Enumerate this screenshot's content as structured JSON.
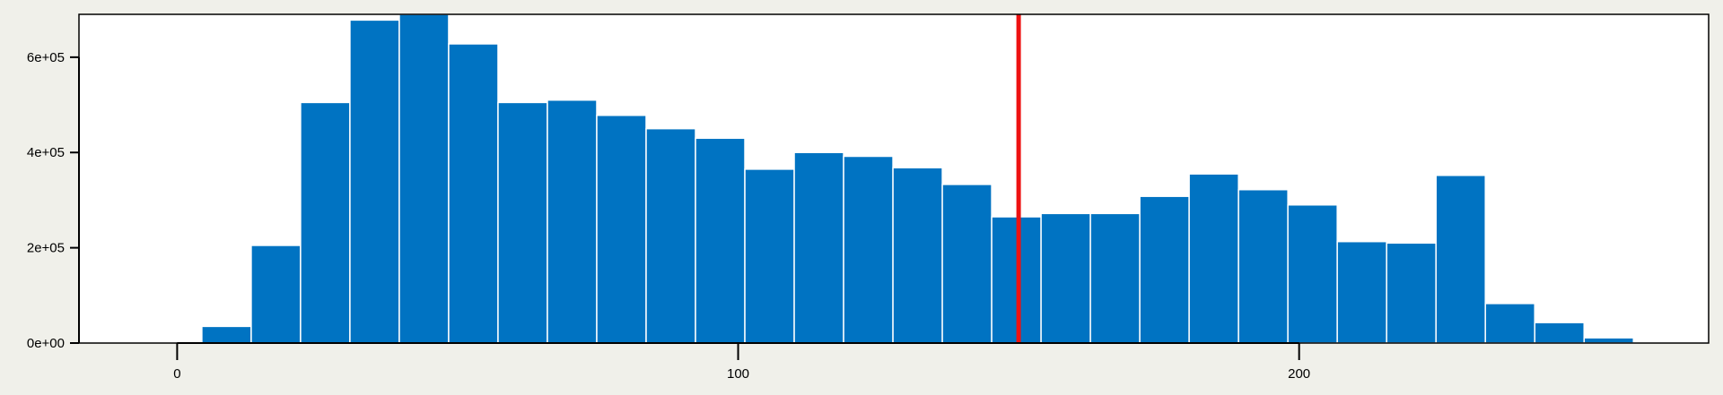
{
  "chart_data": {
    "type": "bar",
    "title": "",
    "xlabel": "",
    "ylabel": "",
    "bin_width": 8.8,
    "bin_start": 4.4,
    "values": [
      35000,
      205000,
      505000,
      678000,
      690000,
      628000,
      505000,
      510000,
      478000,
      450000,
      430000,
      365000,
      400000,
      392000,
      368000,
      333000,
      265000,
      272000,
      272000,
      308000,
      355000,
      322000,
      290000,
      213000,
      210000,
      352000,
      83000,
      43000,
      11000
    ],
    "xlim": [
      -17.5,
      273
    ],
    "ylim": [
      0,
      690000
    ],
    "x_ticks": [
      0,
      100,
      200
    ],
    "x_tick_labels": [
      "0",
      "100",
      "200"
    ],
    "y_ticks": [
      0,
      200000,
      400000,
      600000
    ],
    "y_tick_labels": [
      "0e+00",
      "2e+05",
      "4e+05",
      "6e+05"
    ],
    "reference_line": {
      "x": 150,
      "color": "#ee1111"
    },
    "bar_color": "#0073c2",
    "grid": false,
    "legend": "none"
  }
}
